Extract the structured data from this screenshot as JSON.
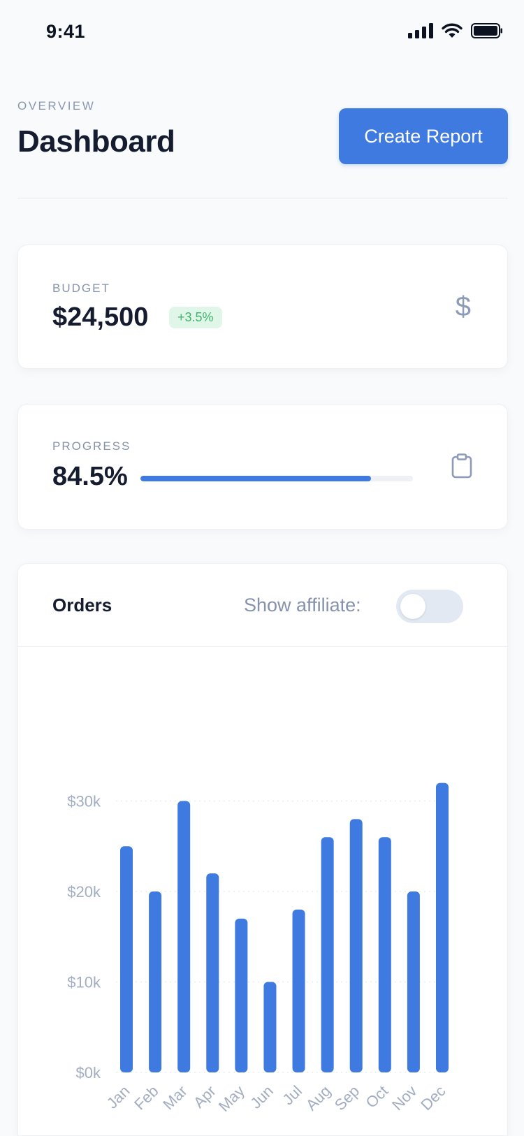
{
  "status": {
    "time": "9:41"
  },
  "header": {
    "eyebrow": "OVERVIEW",
    "title": "Dashboard",
    "create_report_label": "Create Report"
  },
  "budget": {
    "label": "BUDGET",
    "value": "$24,500",
    "change": "+3.5%",
    "icon": "dollar-icon"
  },
  "progress": {
    "label": "PROGRESS",
    "value": "84.5%",
    "fraction": 0.845,
    "icon": "clipboard-icon"
  },
  "orders": {
    "title": "Orders",
    "affiliate_label": "Show affiliate:",
    "affiliate_on": false
  },
  "colors": {
    "accent": "#3f7ae0",
    "positive": "#3fb46c"
  },
  "chart_data": {
    "type": "bar",
    "categories": [
      "Jan",
      "Feb",
      "Mar",
      "Apr",
      "May",
      "Jun",
      "Jul",
      "Aug",
      "Sep",
      "Oct",
      "Nov",
      "Dec"
    ],
    "values": [
      25000,
      20000,
      30000,
      22000,
      17000,
      10000,
      18000,
      26000,
      28000,
      26000,
      20000,
      32000
    ],
    "yticks": [
      "$0k",
      "$10k",
      "$20k",
      "$30k"
    ],
    "ylim": [
      0,
      32000
    ],
    "grid": true,
    "legend": "none",
    "title": "",
    "xlabel": "",
    "ylabel": ""
  }
}
